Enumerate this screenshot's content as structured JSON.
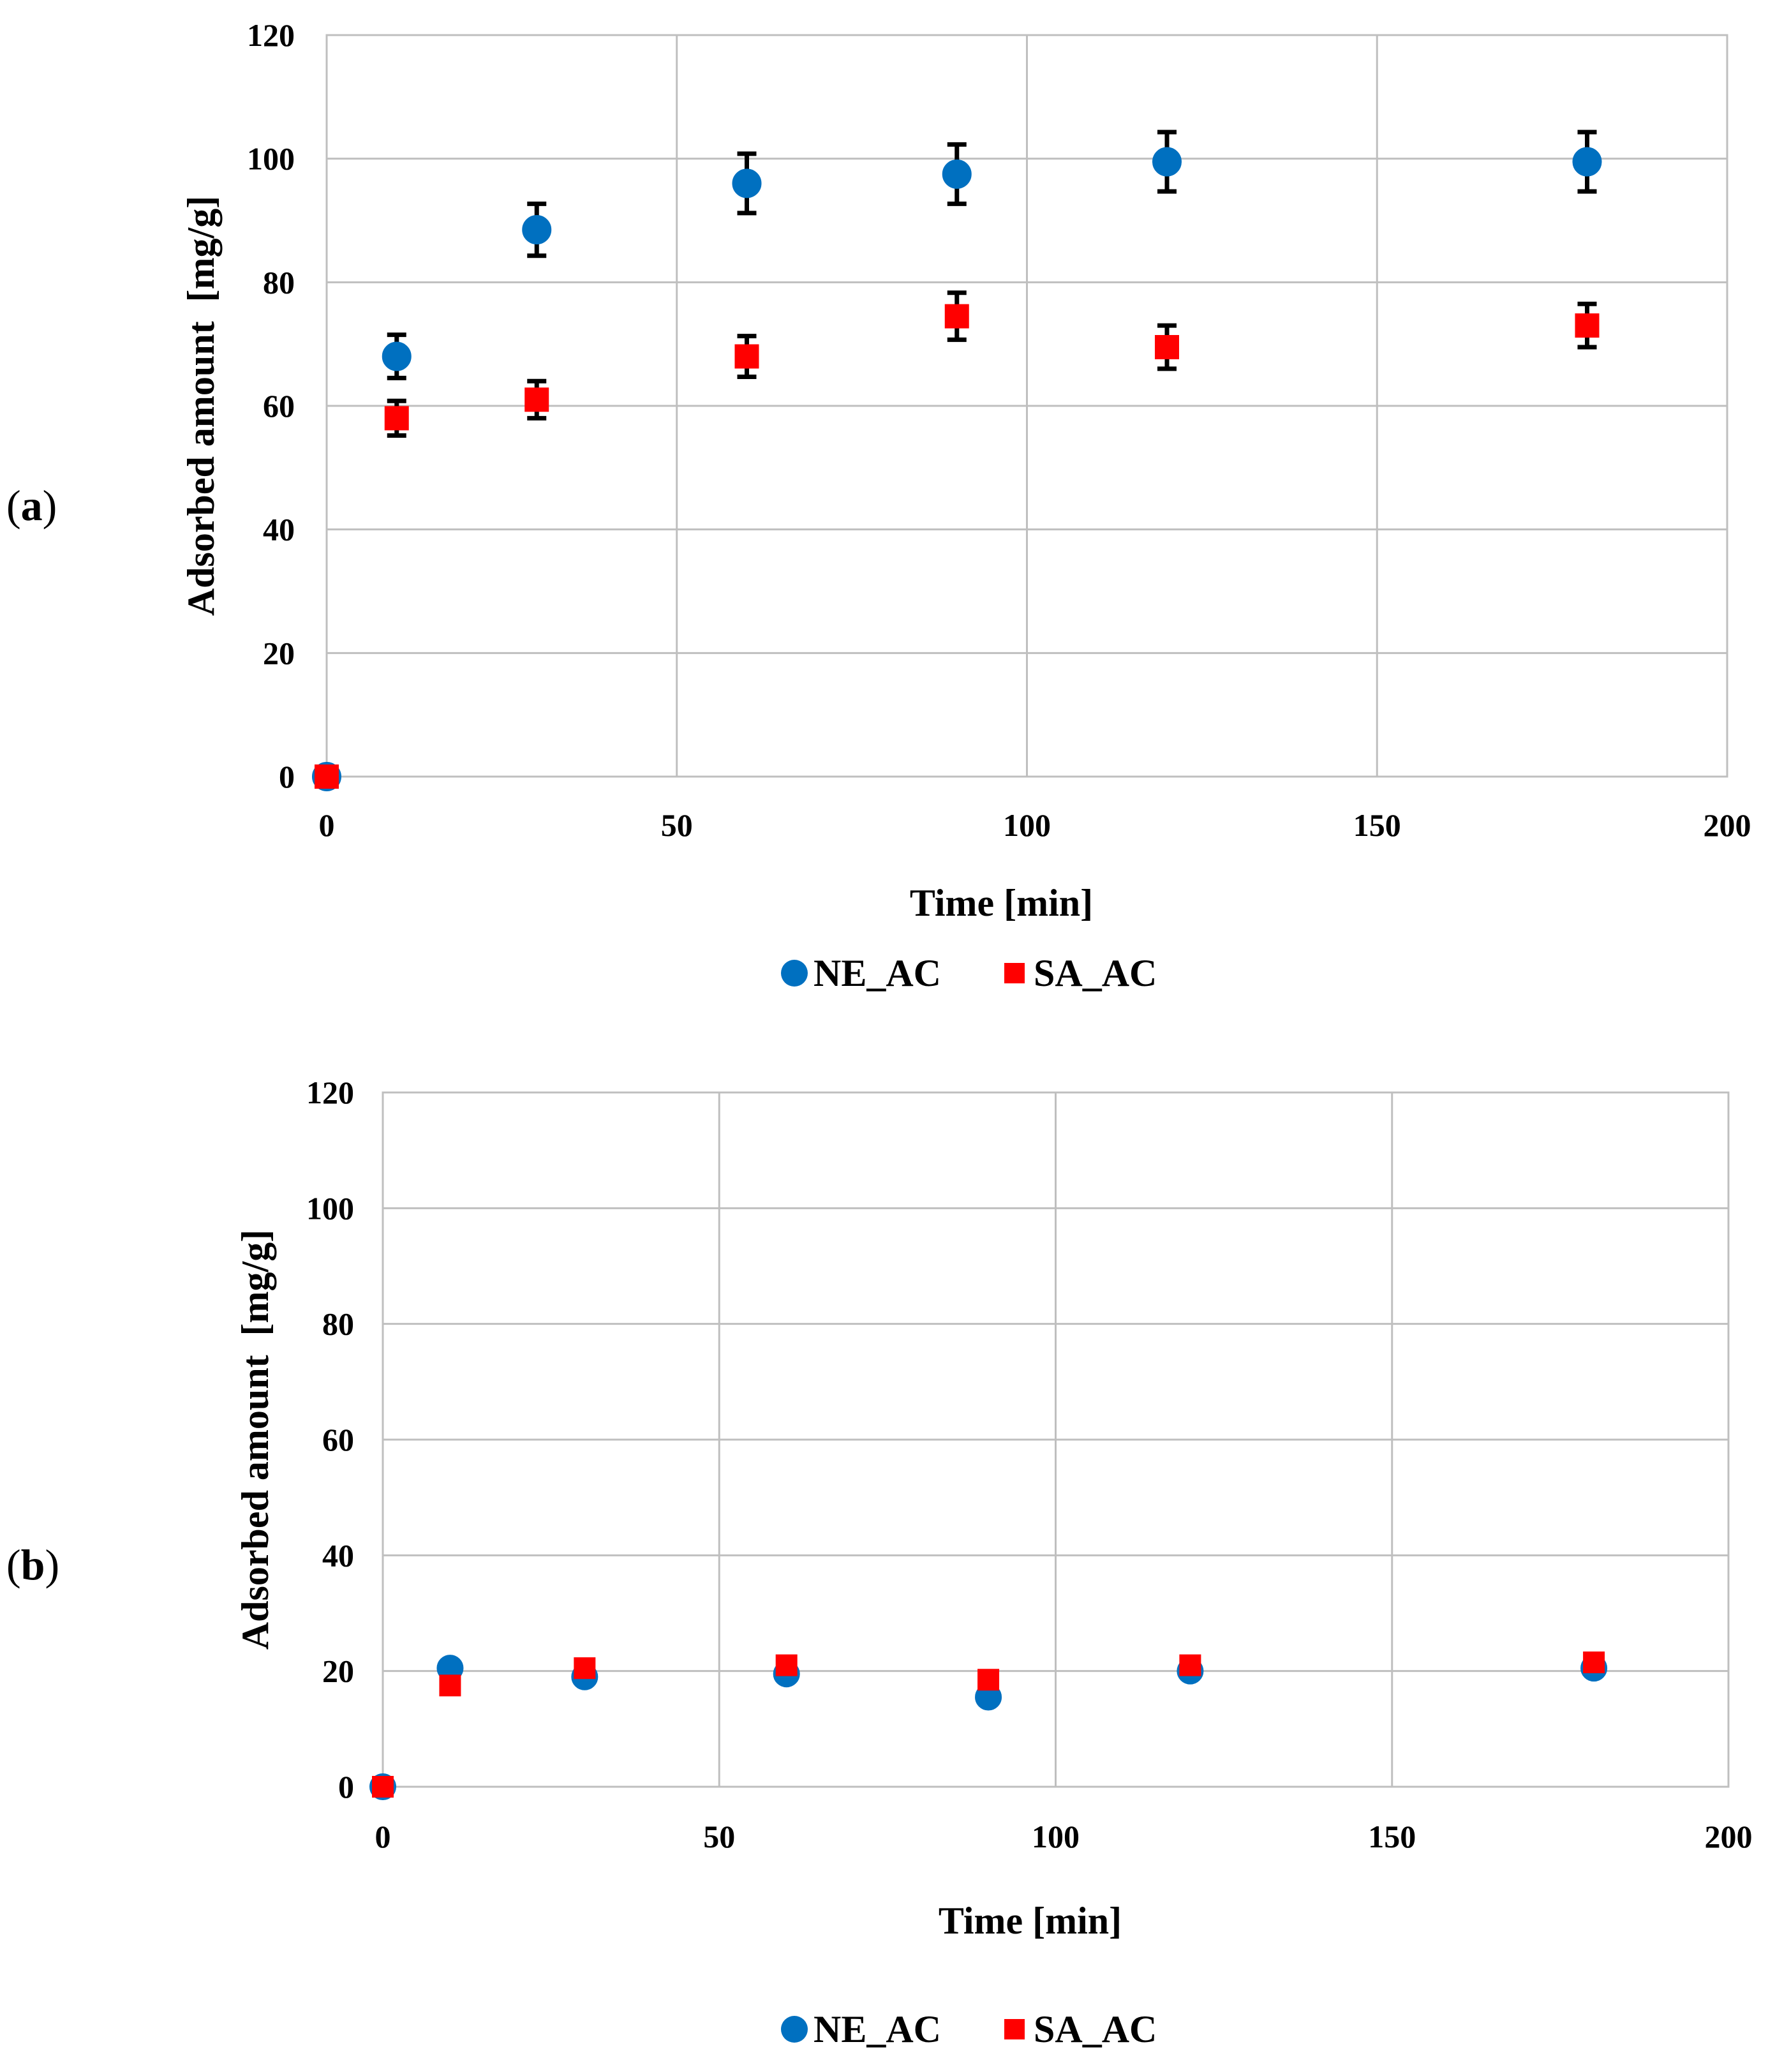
{
  "chart_data": [
    {
      "type": "scatter",
      "panel_label": "a",
      "title": "",
      "xlabel": "Time [min]",
      "ylabel": "Adsorbed amount  [mg/g]",
      "xlim": [
        0,
        200
      ],
      "ylim": [
        0,
        120
      ],
      "xticks": [
        0,
        50,
        100,
        150,
        200
      ],
      "yticks": [
        0,
        20,
        40,
        60,
        80,
        100,
        120
      ],
      "grid": true,
      "legend_position": "bottom",
      "series": [
        {
          "name": "NE_AC",
          "marker": "circle",
          "color": "#0070C0",
          "x": [
            0,
            10,
            30,
            60,
            90,
            120,
            180
          ],
          "y": [
            0,
            68,
            88.5,
            96,
            97.5,
            99.5,
            99.5
          ],
          "err": [
            0,
            3.5,
            4.2,
            4.8,
            4.8,
            4.8,
            4.8
          ]
        },
        {
          "name": "SA_AC",
          "marker": "square",
          "color": "#FF0000",
          "x": [
            0,
            10,
            30,
            60,
            90,
            120,
            180
          ],
          "y": [
            0,
            58,
            61,
            68,
            74.5,
            69.5,
            73
          ],
          "err": [
            0,
            2.8,
            3,
            3.3,
            3.8,
            3.5,
            3.5
          ]
        }
      ]
    },
    {
      "type": "scatter",
      "panel_label": "b",
      "title": "",
      "xlabel": "Time [min]",
      "ylabel": "Adsorbed amount  [mg/g]",
      "xlim": [
        0,
        200
      ],
      "ylim": [
        0,
        120
      ],
      "xticks": [
        0,
        50,
        100,
        150,
        200
      ],
      "yticks": [
        0,
        20,
        40,
        60,
        80,
        100,
        120
      ],
      "grid": true,
      "legend_position": "bottom",
      "series": [
        {
          "name": "NE_AC",
          "marker": "circle",
          "color": "#0070C0",
          "x": [
            0,
            10,
            30,
            60,
            90,
            120,
            180
          ],
          "y": [
            0,
            20.5,
            19,
            19.5,
            15.5,
            20,
            20.5
          ],
          "err": [
            0,
            0,
            0,
            0,
            0,
            0,
            0
          ]
        },
        {
          "name": "SA_AC",
          "marker": "square",
          "color": "#FF0000",
          "x": [
            0,
            10,
            30,
            60,
            90,
            120,
            180
          ],
          "y": [
            0,
            17.5,
            20.5,
            21,
            18.5,
            21,
            21.5
          ],
          "err": [
            0,
            0,
            0,
            0,
            0,
            0,
            0
          ]
        }
      ]
    }
  ]
}
